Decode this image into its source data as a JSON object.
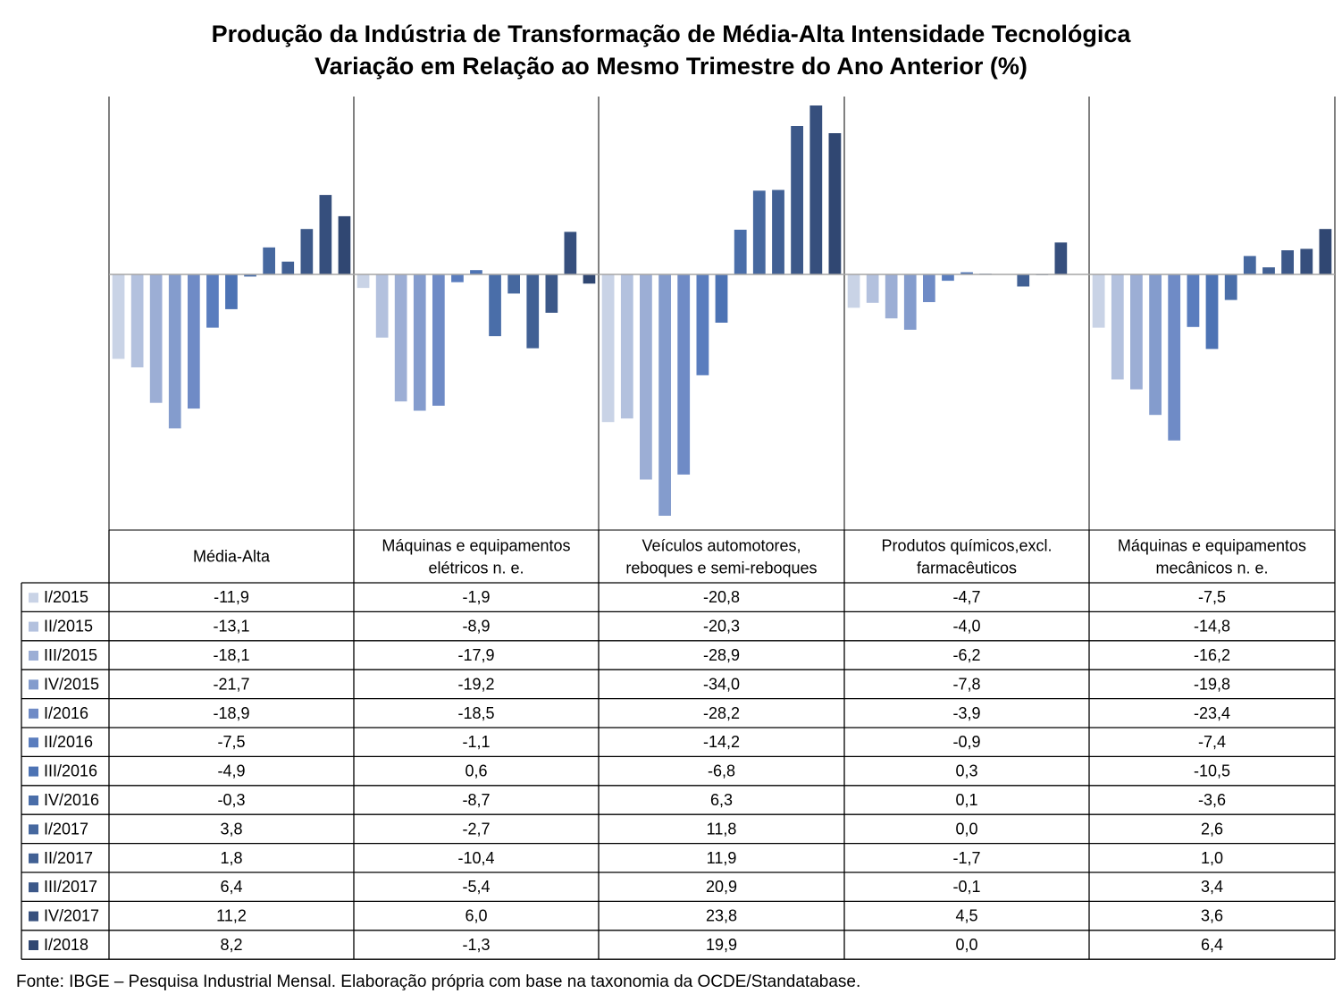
{
  "title_line1": "Produção da Indústria de Transformação de Média-Alta Intensidade Tecnológica",
  "title_line2": "Variação em Relação ao Mesmo Trimestre do Ano Anterior (%)",
  "source": "Fonte: IBGE – Pesquisa Industrial Mensal. Elaboração própria com base na taxonomia da OCDE/Standatabase.",
  "chart_data": {
    "type": "bar",
    "title": "Produção da Indústria de Transformação de Média-Alta Intensidade Tecnológica",
    "subtitle": "Variação em Relação ao Mesmo Trimestre do Ano Anterior (%)",
    "xlabel": "",
    "ylabel": "",
    "ylim": [
      -34.0,
      23.8
    ],
    "grid": false,
    "legend_placement": "data-table-left",
    "categories": [
      [
        "Média-Alta"
      ],
      [
        "Máquinas e equipamentos",
        "elétricos n. e."
      ],
      [
        "Veículos automotores,",
        "reboques e semi-reboques"
      ],
      [
        "Produtos químicos,excl.",
        "farmacêuticos"
      ],
      [
        "Máquinas e equipamentos",
        "mecânicos  n. e."
      ]
    ],
    "series": [
      {
        "name": "I/2015",
        "color": "#c9d3e6",
        "values": [
          -11.9,
          -1.9,
          -20.8,
          -4.7,
          -7.5
        ]
      },
      {
        "name": "II/2015",
        "color": "#b3c1de",
        "values": [
          -13.1,
          -8.9,
          -20.3,
          -4.0,
          -14.8
        ]
      },
      {
        "name": "III/2015",
        "color": "#9caed5",
        "values": [
          -18.1,
          -17.9,
          -28.9,
          -6.2,
          -16.2
        ]
      },
      {
        "name": "IV/2015",
        "color": "#849ccd",
        "values": [
          -21.7,
          -19.2,
          -34.0,
          -7.8,
          -19.8
        ]
      },
      {
        "name": "I/2016",
        "color": "#6f8bc6",
        "values": [
          -18.9,
          -18.5,
          -28.2,
          -3.9,
          -23.4
        ]
      },
      {
        "name": "II/2016",
        "color": "#5a7dbe",
        "values": [
          -7.5,
          -1.1,
          -14.2,
          -0.9,
          -7.4
        ]
      },
      {
        "name": "III/2016",
        "color": "#4d73b4",
        "values": [
          -4.9,
          0.6,
          -6.8,
          0.3,
          -10.5
        ]
      },
      {
        "name": "IV/2016",
        "color": "#4a6ea9",
        "values": [
          -0.3,
          -8.7,
          6.3,
          0.1,
          -3.6
        ]
      },
      {
        "name": "I/2017",
        "color": "#46689f",
        "values": [
          3.8,
          -2.7,
          11.8,
          0.0,
          2.6
        ]
      },
      {
        "name": "II/2017",
        "color": "#416094",
        "values": [
          1.8,
          -10.4,
          11.9,
          -1.7,
          1.0
        ]
      },
      {
        "name": "III/2017",
        "color": "#3c5889",
        "values": [
          6.4,
          -5.4,
          20.9,
          -0.1,
          3.4
        ]
      },
      {
        "name": "IV/2017",
        "color": "#364f7d",
        "values": [
          11.2,
          6.0,
          23.8,
          4.5,
          3.6
        ]
      },
      {
        "name": "I/2018",
        "color": "#304772",
        "values": [
          8.2,
          -1.3,
          19.9,
          0.0,
          6.4
        ]
      }
    ]
  }
}
